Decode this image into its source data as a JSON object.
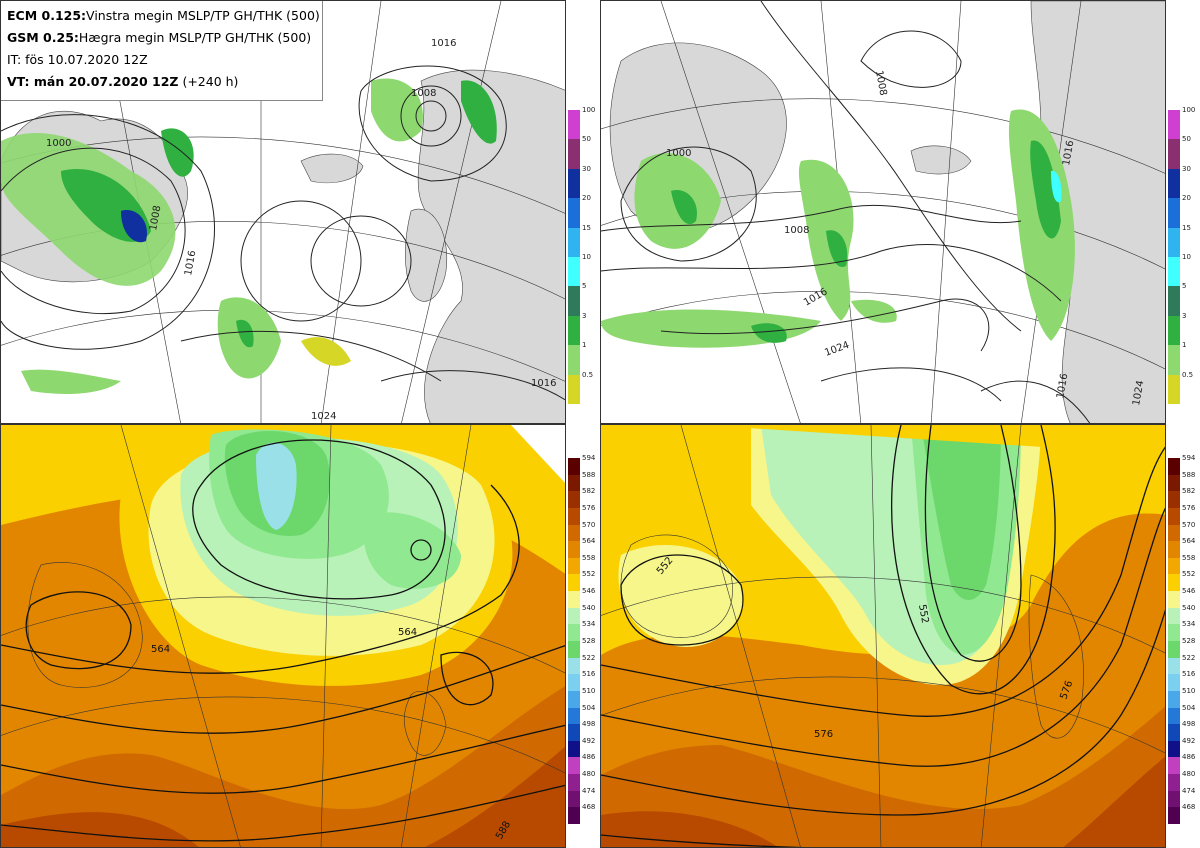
{
  "info": {
    "line1_bold": "ECM 0.125:",
    "line1_text": "Vinstra megin MSLP/TP GH/THK (500)",
    "line2_bold": "GSM 0.25:",
    "line2_text": "Hægra megin MSLP/TP GH/THK (500)",
    "line3_text": "IT: fös 10.07.2020 12Z",
    "line4_bold": "VT: mán 20.07.2020 12Z",
    "line4_text": " (+240 h)"
  },
  "precip_scale": {
    "labels": [
      "100",
      "50",
      "30",
      "20",
      "15",
      "10",
      "5",
      "3",
      "1",
      "0.5"
    ],
    "colors": [
      "#d040d0",
      "#8a3070",
      "#1030a0",
      "#1a6fd8",
      "#2fb4f0",
      "#40ffff",
      "#2f7a5a",
      "#2fb040",
      "#8ed870",
      "#d6d626"
    ]
  },
  "thk_scale": {
    "labels": [
      "594",
      "588",
      "582",
      "576",
      "570",
      "564",
      "558",
      "552",
      "546",
      "540",
      "534",
      "528",
      "522",
      "516",
      "510",
      "504",
      "498",
      "492",
      "486",
      "480",
      "474",
      "468"
    ],
    "colors": [
      "#5a0000",
      "#7a1800",
      "#9a2f00",
      "#b84a00",
      "#d06a00",
      "#e28600",
      "#f2a800",
      "#fad000",
      "#f6f68a",
      "#b8f2b8",
      "#90e890",
      "#6cd86c",
      "#9ae0e8",
      "#7ad0ee",
      "#4aa8e8",
      "#2478d8",
      "#1048b8",
      "#101088",
      "#c040c0",
      "#902090",
      "#701070",
      "#500050"
    ]
  },
  "maps": {
    "tl": {
      "contour_labels": [
        "1016",
        "1008",
        "1000",
        "1008",
        "1016",
        "1016",
        "1024"
      ]
    },
    "tr": {
      "contour_labels": [
        "1008",
        "1000",
        "1008",
        "1016",
        "1024",
        "1016",
        "1016",
        "1024"
      ]
    },
    "bl": {
      "contour_labels": [
        "564",
        "564",
        "588"
      ]
    },
    "br": {
      "contour_labels": [
        "552",
        "552",
        "576",
        "576"
      ]
    }
  }
}
